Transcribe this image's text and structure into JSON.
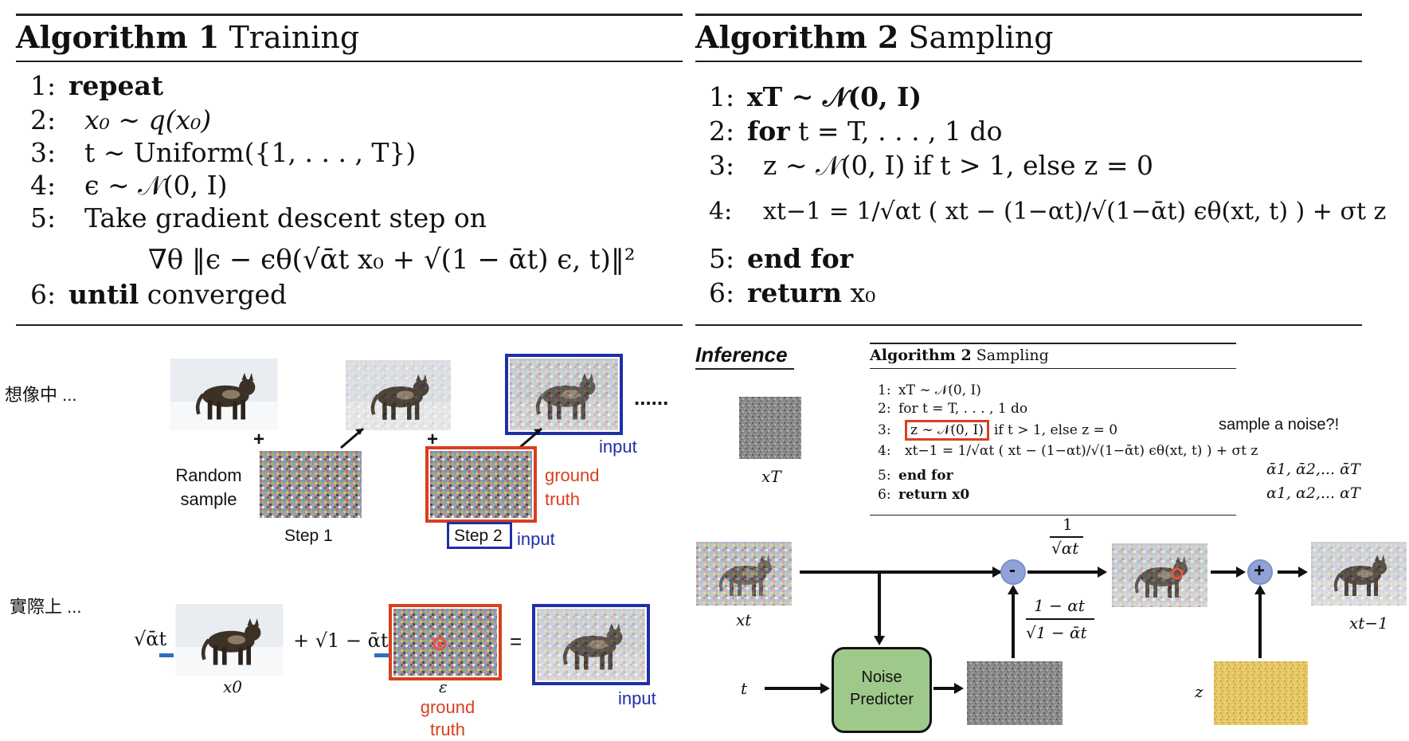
{
  "algorithm1": {
    "title_bold": "Algorithm 1",
    "title_rest": " Training",
    "lines": [
      {
        "num": "1:",
        "bold": "repeat",
        "text": ""
      },
      {
        "num": "2:",
        "bold": "",
        "text": "x₀ ∼ q(x₀)"
      },
      {
        "num": "3:",
        "bold": "",
        "text": "t ∼ Uniform({1, . . . , T})"
      },
      {
        "num": "4:",
        "bold": "",
        "text": "ϵ ∼ 𝒩(0, I)"
      },
      {
        "num": "5:",
        "bold": "",
        "text": "Take gradient descent step on"
      },
      {
        "num": "",
        "bold": "",
        "text": "∇θ ‖ϵ − ϵθ(√ᾱt x₀ + √(1 − ᾱt) ϵ, t)‖²"
      },
      {
        "num": "6:",
        "bold": "until",
        "text": " converged"
      }
    ]
  },
  "algorithm2": {
    "title_bold": "Algorithm 2",
    "title_rest": " Sampling",
    "lines": [
      {
        "num": "1:",
        "bold": "",
        "text": "xT ∼ 𝒩(0, I)"
      },
      {
        "num": "2:",
        "bold": "for",
        "text": " t = T, . . . , 1 do"
      },
      {
        "num": "3:",
        "bold": "",
        "text": "z ∼ 𝒩(0, I) if t > 1, else z = 0"
      },
      {
        "num": "4:",
        "bold": "",
        "text": "xt−1 = 1/√αt ( xt − (1−αt)/√(1−ᾱt) ϵθ(xt, t) ) + σt z"
      },
      {
        "num": "5:",
        "bold": "end for",
        "text": ""
      },
      {
        "num": "6:",
        "bold": "return",
        "text": " x₀"
      }
    ]
  },
  "training_diagram": {
    "imagine_label": "想像中 ...",
    "reality_label": "實際上 ...",
    "random_sample": "Random sample",
    "step1": "Step 1",
    "step2": "Step 2",
    "input": "input",
    "ground_truth": "ground truth",
    "ellipsis": "......",
    "plus": "+",
    "sqrt_alpha": "√ᾱt",
    "sqrt_one_minus": "+ √1 − ᾱt",
    "equals": "=",
    "x0": "x0",
    "epsilon": "ε"
  },
  "inference": {
    "title": "Inference",
    "small_alg_title_bold": "Algorithm 2",
    "small_alg_title_rest": " Sampling",
    "small_lines": [
      {
        "num": "1:",
        "text": "xT ∼ 𝒩(0, I)"
      },
      {
        "num": "2:",
        "text": "for t = T, . . . , 1 do"
      },
      {
        "num": "3:",
        "text": "z ∼ 𝒩(0, I)"
      },
      {
        "num": "",
        "text": "if t > 1, else z = 0"
      },
      {
        "num": "4:",
        "text": "xt−1 = 1/√αt ( xt − (1−αt)/√(1−ᾱt) ϵθ(xt, t) ) + σt z"
      },
      {
        "num": "5:",
        "text": "end for"
      },
      {
        "num": "6:",
        "text": "return x0"
      }
    ],
    "sample_noise_note": "sample a noise?!",
    "alpha_bar_list": "ᾱ1, ᾱ2,... ᾱT",
    "alpha_list": "α1, α2,... αT",
    "xT": "xT",
    "xt": "xt",
    "t": "t",
    "z": "z",
    "xt_minus_1": "xt−1",
    "noise_predicter": "Noise Predicter",
    "frac1": "1",
    "frac1_den": "√αt",
    "frac2_num": "1 − αt",
    "frac2_den": "√1 − ᾱt",
    "minus": "-",
    "plus": "+"
  },
  "colors": {
    "blue": "#1f2fa8",
    "red": "#d9401d",
    "node": "#8fa3d9",
    "predicter": "#9fc98b"
  }
}
